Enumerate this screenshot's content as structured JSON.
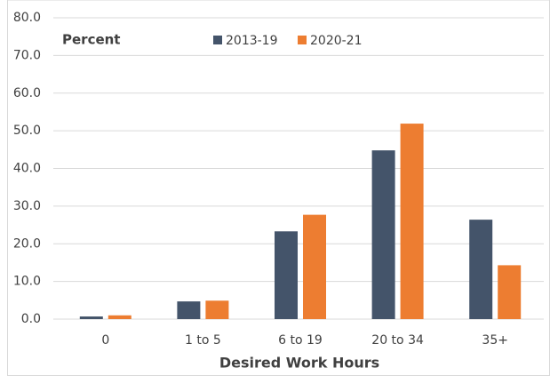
{
  "chart_data": {
    "type": "bar",
    "y_label": "Percent",
    "x_label": "Desired Work Hours",
    "categories": [
      "0",
      "1 to 5",
      "6 to 19",
      "20 to 34",
      "35+"
    ],
    "series": [
      {
        "name": "2013-19",
        "color": "#44546a",
        "values": [
          0.7,
          4.7,
          23.3,
          44.8,
          26.4
        ]
      },
      {
        "name": "2020-21",
        "color": "#ed7d31",
        "values": [
          1.0,
          4.9,
          27.7,
          51.9,
          14.3
        ]
      }
    ],
    "ylim": [
      0,
      80
    ],
    "yticks": [
      {
        "value": 0,
        "label": "0.0"
      },
      {
        "value": 10,
        "label": "10.0"
      },
      {
        "value": 20,
        "label": "20.0"
      },
      {
        "value": 30,
        "label": "30.0"
      },
      {
        "value": 40,
        "label": "40.0"
      },
      {
        "value": 50,
        "label": "50.0"
      },
      {
        "value": 60,
        "label": "60.0"
      },
      {
        "value": 70,
        "label": "70.0"
      },
      {
        "value": 80,
        "label": "80.0"
      }
    ],
    "grid": true,
    "legend": "top"
  }
}
